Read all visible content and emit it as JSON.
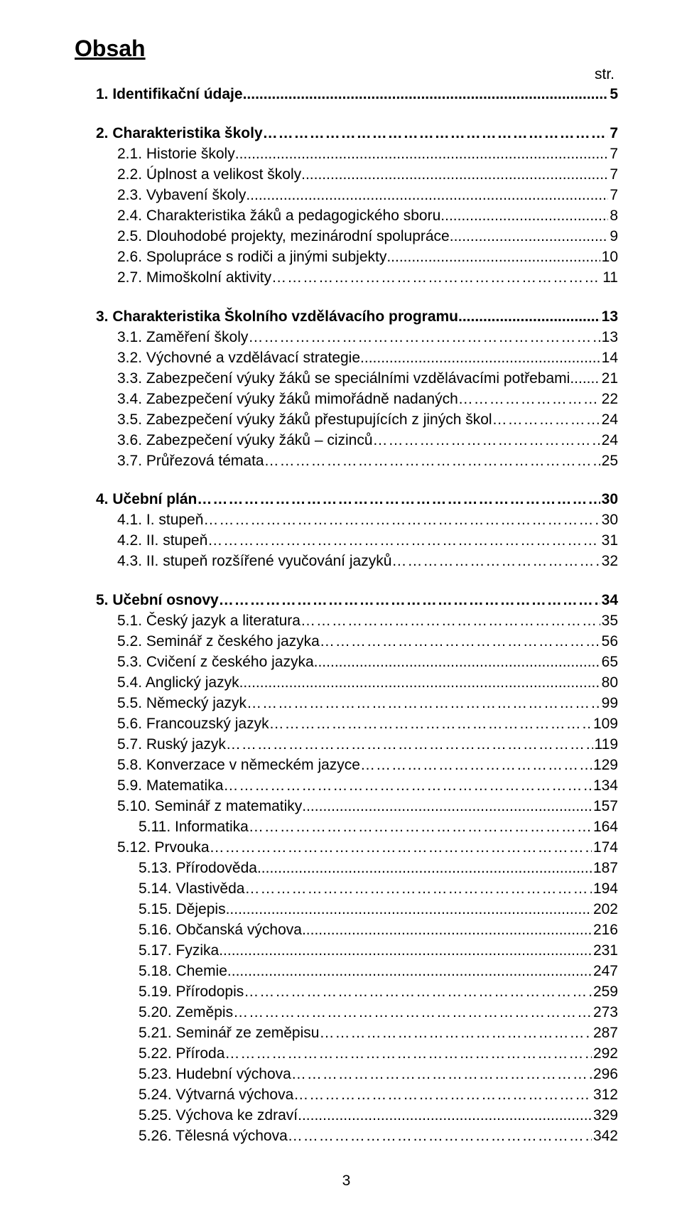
{
  "title": "Obsah",
  "str_label": "str.",
  "footer_page": "3",
  "entries": [
    {
      "num": "1.",
      "text": "Identifikační údaje",
      "page": "5",
      "indent": 0,
      "bold": true,
      "dots": "periods",
      "topSpace": false
    },
    {
      "num": "2.",
      "text": "Charakteristika školy",
      "page": "7",
      "indent": 0,
      "bold": true,
      "dots": "ellipsis",
      "topSpace": true
    },
    {
      "num": "2.1.",
      "text": "Historie školy",
      "page": "7",
      "indent": 1,
      "bold": false,
      "dots": "periods",
      "topSpace": false
    },
    {
      "num": "2.2.",
      "text": "Úplnost a velikost školy",
      "page": "7",
      "indent": 1,
      "bold": false,
      "dots": "periods",
      "topSpace": false
    },
    {
      "num": "2.3.",
      "text": "Vybavení školy",
      "page": "7",
      "indent": 1,
      "bold": false,
      "dots": "periods",
      "topSpace": false
    },
    {
      "num": "2.4.",
      "text": "Charakteristika žáků a pedagogického sboru",
      "page": "8",
      "indent": 1,
      "bold": false,
      "dots": "periods",
      "topSpace": false
    },
    {
      "num": "2.5.",
      "text": "Dlouhodobé projekty, mezinárodní spolupráce",
      "page": "9",
      "indent": 1,
      "bold": false,
      "dots": "periods",
      "topSpace": false
    },
    {
      "num": "2.6.",
      "text": "Spolupráce s rodiči a jinými subjekty",
      "page": "10",
      "indent": 1,
      "bold": false,
      "dots": "periods",
      "topSpace": false
    },
    {
      "num": "2.7.",
      "text": "Mimoškolní aktivity",
      "page": "11",
      "indent": 1,
      "bold": false,
      "dots": "ellipsis",
      "topSpace": false
    },
    {
      "num": "3.",
      "text": "Charakteristika Školního vzdělávacího programu",
      "page": "13",
      "indent": 0,
      "bold": true,
      "dots": "periods",
      "topSpace": true
    },
    {
      "num": "3.1.",
      "text": "Zaměření školy",
      "page": "13",
      "indent": 1,
      "bold": false,
      "dots": "ellipsis",
      "topSpace": false
    },
    {
      "num": "3.2.",
      "text": "Výchovné a vzdělávací strategie",
      "page": "14",
      "indent": 1,
      "bold": false,
      "dots": "periods",
      "topSpace": false
    },
    {
      "num": "3.3.",
      "text": "Zabezpečení výuky žáků se speciálními vzdělávacími potřebami",
      "page": "21",
      "indent": 1,
      "bold": false,
      "dots": "periods",
      "topSpace": false
    },
    {
      "num": "3.4.",
      "text": "Zabezpečení výuky žáků mimořádně nadaných",
      "page": "22",
      "indent": 1,
      "bold": false,
      "dots": "ellipsis",
      "topSpace": false
    },
    {
      "num": "3.5.",
      "text": "Zabezpečení výuky žáků přestupujících z jiných škol",
      "page": "24",
      "indent": 1,
      "bold": false,
      "dots": "ellipsis",
      "topSpace": false
    },
    {
      "num": "3.6.",
      "text": "Zabezpečení výuky žáků – cizinců",
      "page": "24",
      "indent": 1,
      "bold": false,
      "dots": "ellipsis",
      "topSpace": false
    },
    {
      "num": "3.7.",
      "text": "Průřezová témata",
      "page": "25",
      "indent": 1,
      "bold": false,
      "dots": "ellipsis",
      "topSpace": false
    },
    {
      "num": "4.",
      "text": "Učební plán",
      "page": "30",
      "indent": 0,
      "bold": true,
      "dots": "ellipsis",
      "topSpace": true
    },
    {
      "num": "4.1.",
      "text": "I. stupeň",
      "page": "30",
      "indent": 1,
      "bold": false,
      "dots": "ellipsis",
      "topSpace": false
    },
    {
      "num": "4.2.",
      "text": "II. stupeň",
      "page": "31",
      "indent": 1,
      "bold": false,
      "dots": "ellipsis",
      "topSpace": false
    },
    {
      "num": "4.3.",
      "text": "II. stupeň rozšířené vyučování jazyků",
      "page": "32",
      "indent": 1,
      "bold": false,
      "dots": "ellipsis",
      "topSpace": false
    },
    {
      "num": "5.",
      "text": "Učební osnovy",
      "page": "34",
      "indent": 0,
      "bold": true,
      "dots": "ellipsis",
      "topSpace": true
    },
    {
      "num": "5.1.",
      "text": "Český jazyk a literatura",
      "page": "35",
      "indent": 1,
      "bold": false,
      "dots": "ellipsis",
      "topSpace": false
    },
    {
      "num": "5.2.",
      "text": "Seminář z českého jazyka",
      "page": "56",
      "indent": 1,
      "bold": false,
      "dots": "ellipsis",
      "topSpace": false
    },
    {
      "num": "5.3.",
      "text": "Cvičení z českého jazyka",
      "page": "65",
      "indent": 1,
      "bold": false,
      "dots": "periods",
      "topSpace": false
    },
    {
      "num": "5.4.",
      "text": "Anglický jazyk",
      "page": "80",
      "indent": 1,
      "bold": false,
      "dots": "periods",
      "topSpace": false
    },
    {
      "num": "5.5.",
      "text": "Německý jazyk",
      "page": "99",
      "indent": 1,
      "bold": false,
      "dots": "ellipsis",
      "topSpace": false
    },
    {
      "num": "5.6.",
      "text": "Francouzský jazyk",
      "page": "109",
      "indent": 1,
      "bold": false,
      "dots": "ellipsis",
      "topSpace": false
    },
    {
      "num": "5.7.",
      "text": "Ruský jazyk",
      "page": "119",
      "indent": 1,
      "bold": false,
      "dots": "ellipsis",
      "topSpace": false
    },
    {
      "num": "5.8.",
      "text": "Konverzace v německém jazyce",
      "page": "129",
      "indent": 1,
      "bold": false,
      "dots": "ellipsis",
      "topSpace": false
    },
    {
      "num": "5.9.",
      "text": "Matematika",
      "page": "134",
      "indent": 1,
      "bold": false,
      "dots": "ellipsis",
      "topSpace": false
    },
    {
      "num": "5.10.",
      "text": "Seminář z matematiky",
      "page": "157",
      "indent": 1,
      "bold": false,
      "dots": "periods",
      "topSpace": false
    },
    {
      "num": "5.11.",
      "text": "Informatika",
      "page": "164",
      "indent": 2,
      "bold": false,
      "dots": "ellipsis",
      "topSpace": false
    },
    {
      "num": "5.12.",
      "text": "Prvouka",
      "page": "174",
      "indent": 1,
      "bold": false,
      "dots": "ellipsis",
      "topSpace": false
    },
    {
      "num": "5.13.",
      "text": "Přírodověda",
      "page": "187",
      "indent": 2,
      "bold": false,
      "dots": "periods",
      "topSpace": false
    },
    {
      "num": "5.14.",
      "text": "Vlastivěda",
      "page": "194",
      "indent": 2,
      "bold": false,
      "dots": "ellipsis",
      "topSpace": false
    },
    {
      "num": "5.15.",
      "text": "Dějepis",
      "page": "202",
      "indent": 2,
      "bold": false,
      "dots": "periods",
      "topSpace": false
    },
    {
      "num": "5.16.",
      "text": "Občanská výchova",
      "page": "216",
      "indent": 2,
      "bold": false,
      "dots": "periods",
      "topSpace": false
    },
    {
      "num": "5.17.",
      "text": "Fyzika",
      "page": "231",
      "indent": 2,
      "bold": false,
      "dots": "periods",
      "topSpace": false
    },
    {
      "num": "5.18.",
      "text": "Chemie",
      "page": "247",
      "indent": 2,
      "bold": false,
      "dots": "periods",
      "topSpace": false
    },
    {
      "num": "5.19.",
      "text": "Přírodopis",
      "page": "259",
      "indent": 2,
      "bold": false,
      "dots": "ellipsis",
      "topSpace": false
    },
    {
      "num": "5.20.",
      "text": "Zeměpis",
      "page": "273",
      "indent": 2,
      "bold": false,
      "dots": "ellipsis",
      "topSpace": false
    },
    {
      "num": "5.21.",
      "text": "Seminář ze zeměpisu",
      "page": "287",
      "indent": 2,
      "bold": false,
      "dots": "ellipsis",
      "topSpace": false
    },
    {
      "num": "5.22.",
      "text": "Příroda",
      "page": "292",
      "indent": 2,
      "bold": false,
      "dots": "ellipsis",
      "topSpace": false
    },
    {
      "num": "5.23.",
      "text": "Hudební výchova",
      "page": "296",
      "indent": 2,
      "bold": false,
      "dots": "ellipsis",
      "topSpace": false
    },
    {
      "num": "5.24.",
      "text": "Výtvarná výchova",
      "page": "312",
      "indent": 2,
      "bold": false,
      "dots": "ellipsis",
      "topSpace": false
    },
    {
      "num": "5.25.",
      "text": "Výchova ke zdraví",
      "page": "329",
      "indent": 2,
      "bold": false,
      "dots": "periods",
      "topSpace": false
    },
    {
      "num": "5.26.",
      "text": "Tělesná výchova",
      "page": "342",
      "indent": 2,
      "bold": false,
      "dots": "ellipsis",
      "topSpace": false
    }
  ]
}
